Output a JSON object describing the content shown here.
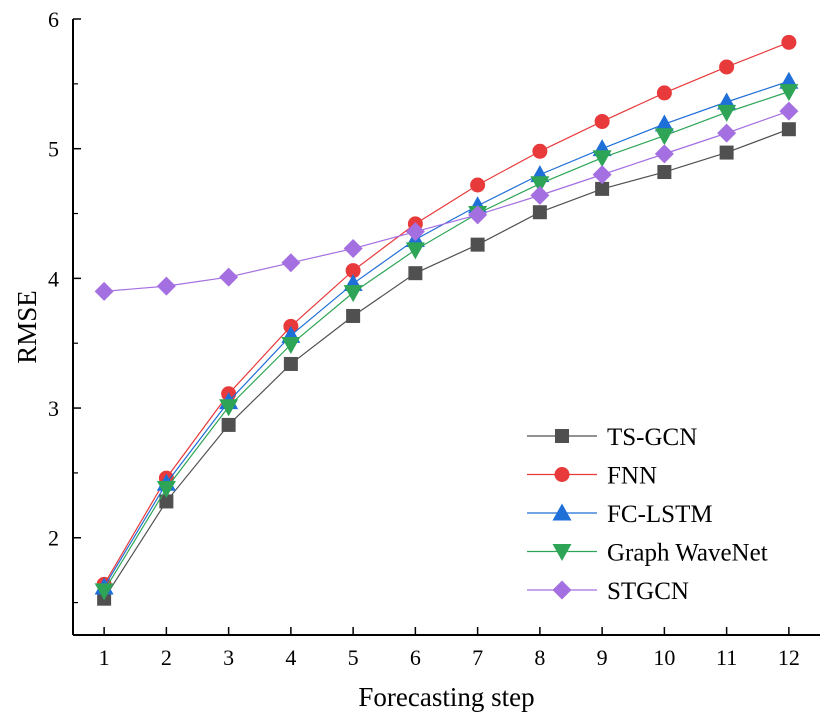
{
  "chart_data": {
    "type": "line",
    "title": "",
    "xlabel": "Forecasting step",
    "ylabel": "RMSE",
    "x": [
      1,
      2,
      3,
      4,
      5,
      6,
      7,
      8,
      9,
      10,
      11,
      12
    ],
    "xlim": [
      0.5,
      12.5
    ],
    "ylim": [
      1.25,
      6.0
    ],
    "xticks": [
      "1",
      "2",
      "3",
      "4",
      "5",
      "6",
      "7",
      "8",
      "9",
      "10",
      "11",
      "12"
    ],
    "yticks": [
      "2",
      "3",
      "4",
      "5",
      "6"
    ],
    "grid": false,
    "legend_position": "bottom-right",
    "series": [
      {
        "name": "TS-GCN",
        "color": "#505050",
        "marker": "square",
        "values": [
          1.53,
          2.28,
          2.87,
          3.34,
          3.71,
          4.04,
          4.26,
          4.51,
          4.69,
          4.82,
          4.97,
          5.15
        ]
      },
      {
        "name": "FNN",
        "color": "#e8393b",
        "marker": "circle",
        "values": [
          1.64,
          2.46,
          3.11,
          3.63,
          4.06,
          4.42,
          4.72,
          4.98,
          5.21,
          5.43,
          5.63,
          5.82
        ]
      },
      {
        "name": "FC-LSTM",
        "color": "#1f6fd8",
        "marker": "triangle-up",
        "values": [
          1.62,
          2.42,
          3.05,
          3.56,
          3.96,
          4.3,
          4.56,
          4.8,
          5.0,
          5.19,
          5.36,
          5.52
        ]
      },
      {
        "name": "Graph WaveNet",
        "color": "#2ea556",
        "marker": "triangle-down",
        "values": [
          1.59,
          2.38,
          3.01,
          3.49,
          3.89,
          4.22,
          4.5,
          4.73,
          4.93,
          5.1,
          5.28,
          5.44
        ]
      },
      {
        "name": "STGCN",
        "color": "#a46fe0",
        "marker": "diamond",
        "values": [
          3.9,
          3.94,
          4.01,
          4.12,
          4.23,
          4.36,
          4.49,
          4.64,
          4.8,
          4.96,
          5.12,
          5.29
        ]
      }
    ]
  }
}
